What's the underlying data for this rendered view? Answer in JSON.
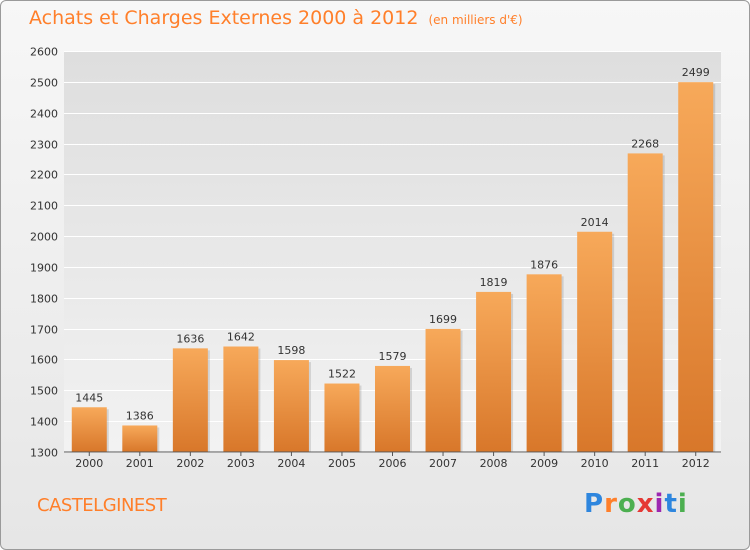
{
  "title": "Achats et Charges Externes 2000 à 2012",
  "subtitle": "(en milliers d'€)",
  "town": "CASTELGINEST",
  "logo": {
    "text": "Proxiti"
  },
  "colors": {
    "accent": "#ff7f2a",
    "bar_top": "#f7a95a",
    "bar_bottom": "#d8772a"
  },
  "chart_data": {
    "type": "bar",
    "categories": [
      "2000",
      "2001",
      "2002",
      "2003",
      "2004",
      "2005",
      "2006",
      "2007",
      "2008",
      "2009",
      "2010",
      "2011",
      "2012"
    ],
    "values": [
      1445,
      1386,
      1636,
      1642,
      1598,
      1522,
      1579,
      1699,
      1819,
      1876,
      2014,
      2268,
      2499
    ],
    "ylim": [
      1300,
      2600
    ],
    "yticks": [
      1300,
      1400,
      1500,
      1600,
      1700,
      1800,
      1900,
      2000,
      2100,
      2200,
      2300,
      2400,
      2500,
      2600
    ],
    "grid": true,
    "data_labels": true
  }
}
